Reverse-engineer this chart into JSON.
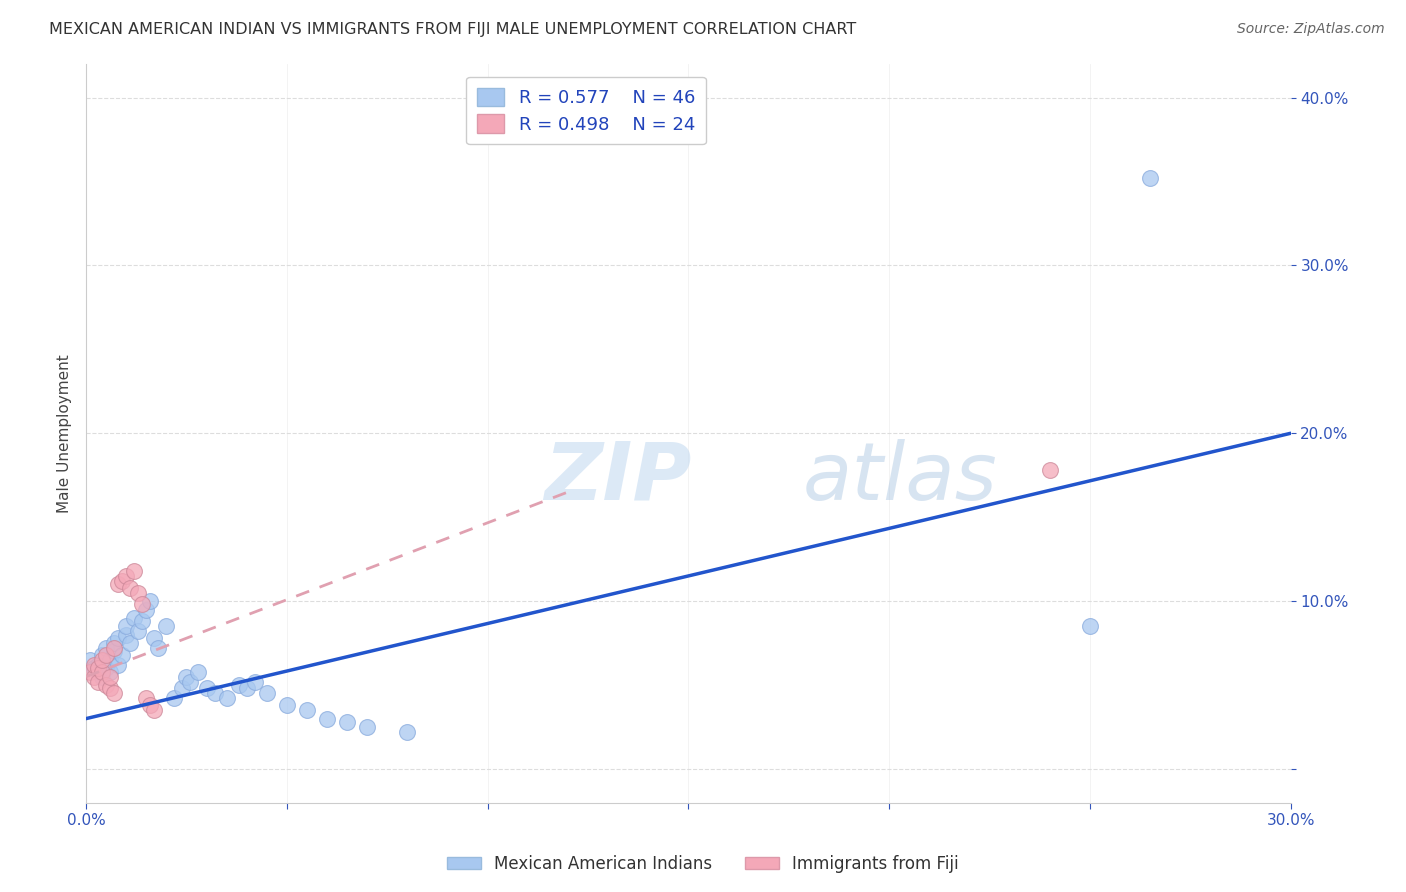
{
  "title": "MEXICAN AMERICAN INDIAN VS IMMIGRANTS FROM FIJI MALE UNEMPLOYMENT CORRELATION CHART",
  "source": "Source: ZipAtlas.com",
  "ylabel": "Male Unemployment",
  "xlim": [
    0.0,
    0.3
  ],
  "ylim": [
    -0.02,
    0.42
  ],
  "xticks": [
    0.0,
    0.05,
    0.1,
    0.15,
    0.2,
    0.25,
    0.3
  ],
  "yticks": [
    0.0,
    0.1,
    0.2,
    0.3,
    0.4
  ],
  "blue_R": 0.577,
  "blue_N": 46,
  "pink_R": 0.498,
  "pink_N": 24,
  "blue_color": "#a8c8f0",
  "pink_color": "#f4a8b8",
  "blue_line_color": "#2255cc",
  "pink_line_color": "#e0a0b0",
  "blue_scatter": [
    [
      0.001,
      0.065
    ],
    [
      0.002,
      0.06
    ],
    [
      0.003,
      0.058
    ],
    [
      0.003,
      0.062
    ],
    [
      0.004,
      0.055
    ],
    [
      0.004,
      0.068
    ],
    [
      0.005,
      0.06
    ],
    [
      0.005,
      0.072
    ],
    [
      0.006,
      0.058
    ],
    [
      0.006,
      0.065
    ],
    [
      0.007,
      0.07
    ],
    [
      0.007,
      0.075
    ],
    [
      0.008,
      0.062
    ],
    [
      0.008,
      0.078
    ],
    [
      0.009,
      0.068
    ],
    [
      0.01,
      0.08
    ],
    [
      0.01,
      0.085
    ],
    [
      0.011,
      0.075
    ],
    [
      0.012,
      0.09
    ],
    [
      0.013,
      0.082
    ],
    [
      0.014,
      0.088
    ],
    [
      0.015,
      0.095
    ],
    [
      0.016,
      0.1
    ],
    [
      0.017,
      0.078
    ],
    [
      0.018,
      0.072
    ],
    [
      0.02,
      0.085
    ],
    [
      0.022,
      0.042
    ],
    [
      0.024,
      0.048
    ],
    [
      0.025,
      0.055
    ],
    [
      0.026,
      0.052
    ],
    [
      0.028,
      0.058
    ],
    [
      0.03,
      0.048
    ],
    [
      0.032,
      0.045
    ],
    [
      0.035,
      0.042
    ],
    [
      0.038,
      0.05
    ],
    [
      0.04,
      0.048
    ],
    [
      0.042,
      0.052
    ],
    [
      0.045,
      0.045
    ],
    [
      0.05,
      0.038
    ],
    [
      0.055,
      0.035
    ],
    [
      0.06,
      0.03
    ],
    [
      0.065,
      0.028
    ],
    [
      0.07,
      0.025
    ],
    [
      0.08,
      0.022
    ],
    [
      0.25,
      0.085
    ],
    [
      0.265,
      0.352
    ]
  ],
  "pink_scatter": [
    [
      0.001,
      0.058
    ],
    [
      0.002,
      0.055
    ],
    [
      0.002,
      0.062
    ],
    [
      0.003,
      0.052
    ],
    [
      0.003,
      0.06
    ],
    [
      0.004,
      0.058
    ],
    [
      0.004,
      0.065
    ],
    [
      0.005,
      0.05
    ],
    [
      0.005,
      0.068
    ],
    [
      0.006,
      0.048
    ],
    [
      0.006,
      0.055
    ],
    [
      0.007,
      0.072
    ],
    [
      0.007,
      0.045
    ],
    [
      0.008,
      0.11
    ],
    [
      0.009,
      0.112
    ],
    [
      0.01,
      0.115
    ],
    [
      0.011,
      0.108
    ],
    [
      0.012,
      0.118
    ],
    [
      0.013,
      0.105
    ],
    [
      0.014,
      0.098
    ],
    [
      0.015,
      0.042
    ],
    [
      0.016,
      0.038
    ],
    [
      0.017,
      0.035
    ],
    [
      0.24,
      0.178
    ]
  ],
  "watermark_zip": "ZIP",
  "watermark_atlas": "atlas",
  "background_color": "#ffffff",
  "grid_color": "#dddddd"
}
